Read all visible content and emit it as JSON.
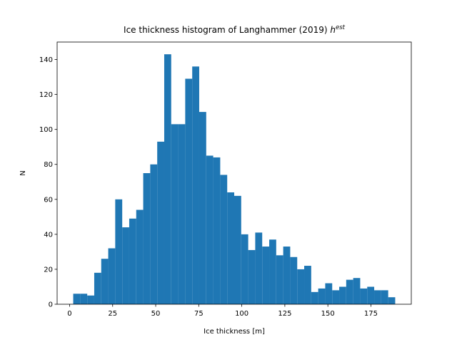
{
  "chart_data": {
    "type": "histogram",
    "title": "Ice thickness histogram of Langhammer (2019)",
    "title_symbol": "h",
    "title_superscript": "est",
    "xlabel": "Ice thickness [m]",
    "ylabel": "N",
    "color": "#1f77b4",
    "bins": [
      2.1,
      6.17,
      10.23,
      14.3,
      18.36,
      22.43,
      26.49,
      30.56,
      34.62,
      38.69,
      42.75,
      46.82,
      50.88,
      54.95,
      59.01,
      63.08,
      67.14,
      71.21,
      75.27,
      79.34,
      83.4,
      87.47,
      91.53,
      95.6,
      99.66,
      103.73,
      107.8,
      111.86,
      115.93,
      119.99,
      124.06,
      128.12,
      132.19,
      136.25,
      140.32,
      144.38,
      148.45,
      152.51,
      156.58,
      160.64,
      164.71,
      168.77,
      172.84,
      176.9,
      180.97,
      185.03,
      189.1
    ],
    "values": [
      6,
      6,
      5,
      18,
      26,
      32,
      60,
      44,
      49,
      54,
      75,
      80,
      93,
      143,
      103,
      103,
      129,
      136,
      110,
      85,
      84,
      74,
      64,
      62,
      40,
      31,
      41,
      33,
      37,
      28,
      33,
      27,
      20,
      22,
      7,
      9,
      12,
      8,
      10,
      14,
      15,
      9,
      10,
      8,
      8,
      4
    ],
    "xlim": [
      -7.25,
      198.45
    ],
    "ylim": [
      0,
      150
    ],
    "xticks": [
      0,
      25,
      50,
      75,
      100,
      125,
      150,
      175
    ],
    "yticks": [
      0,
      20,
      40,
      60,
      80,
      100,
      120,
      140
    ]
  }
}
